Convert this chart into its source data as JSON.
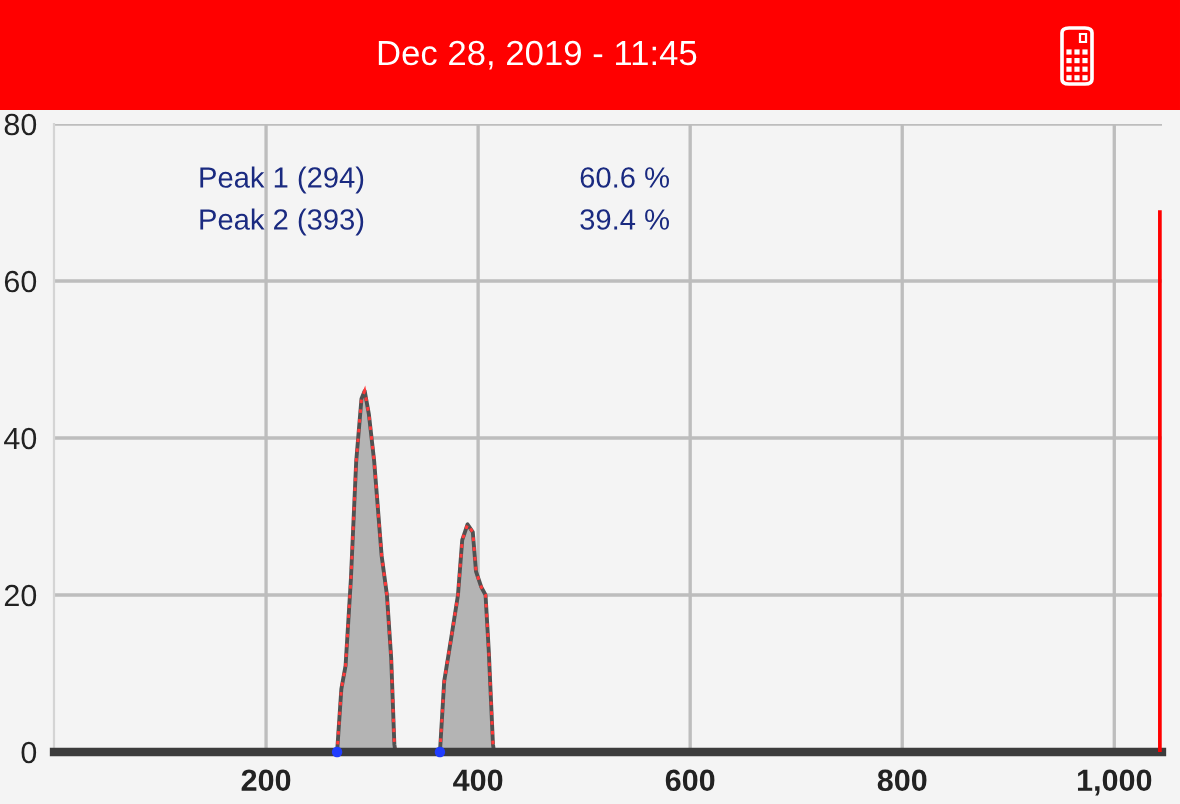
{
  "chart_data": {
    "type": "area",
    "title": "Dec 28, 2019 - 11:45",
    "xlim": [
      0,
      1045
    ],
    "xticks": [
      200,
      400,
      600,
      800,
      {
        "value": 1000,
        "label": "1,000"
      }
    ],
    "ylim": [
      0,
      80
    ],
    "yticks": [
      0,
      20,
      40,
      60,
      80
    ],
    "grid": true,
    "annotations": [
      "Peak 1 (294)",
      "60.6 %",
      "Peak 2 (393)",
      "39.4 %"
    ],
    "series": [
      {
        "color": "#b4b4b4",
        "x": [
          0,
          267,
          271,
          275,
          280,
          285,
          290,
          293,
          297,
          302,
          309,
          314,
          318,
          321,
          322,
          364,
          368,
          374,
          381,
          385,
          390,
          395,
          398,
          403,
          407,
          410,
          414,
          415,
          1043
        ],
        "values": [
          0,
          0,
          8,
          11,
          22,
          37,
          45,
          46,
          43,
          37,
          25,
          20,
          12,
          1,
          0,
          0,
          9,
          14,
          20,
          27,
          29,
          28,
          23,
          21,
          20,
          13,
          1,
          0,
          0
        ]
      },
      {
        "type": "bar",
        "color": "#ff0000",
        "x": [
          1043
        ],
        "values": [
          69
        ]
      },
      {
        "type": "scatter",
        "color": "#1f3cff",
        "marker": "circle",
        "x": [
          267,
          364
        ],
        "values": [
          0,
          0
        ]
      }
    ]
  }
}
